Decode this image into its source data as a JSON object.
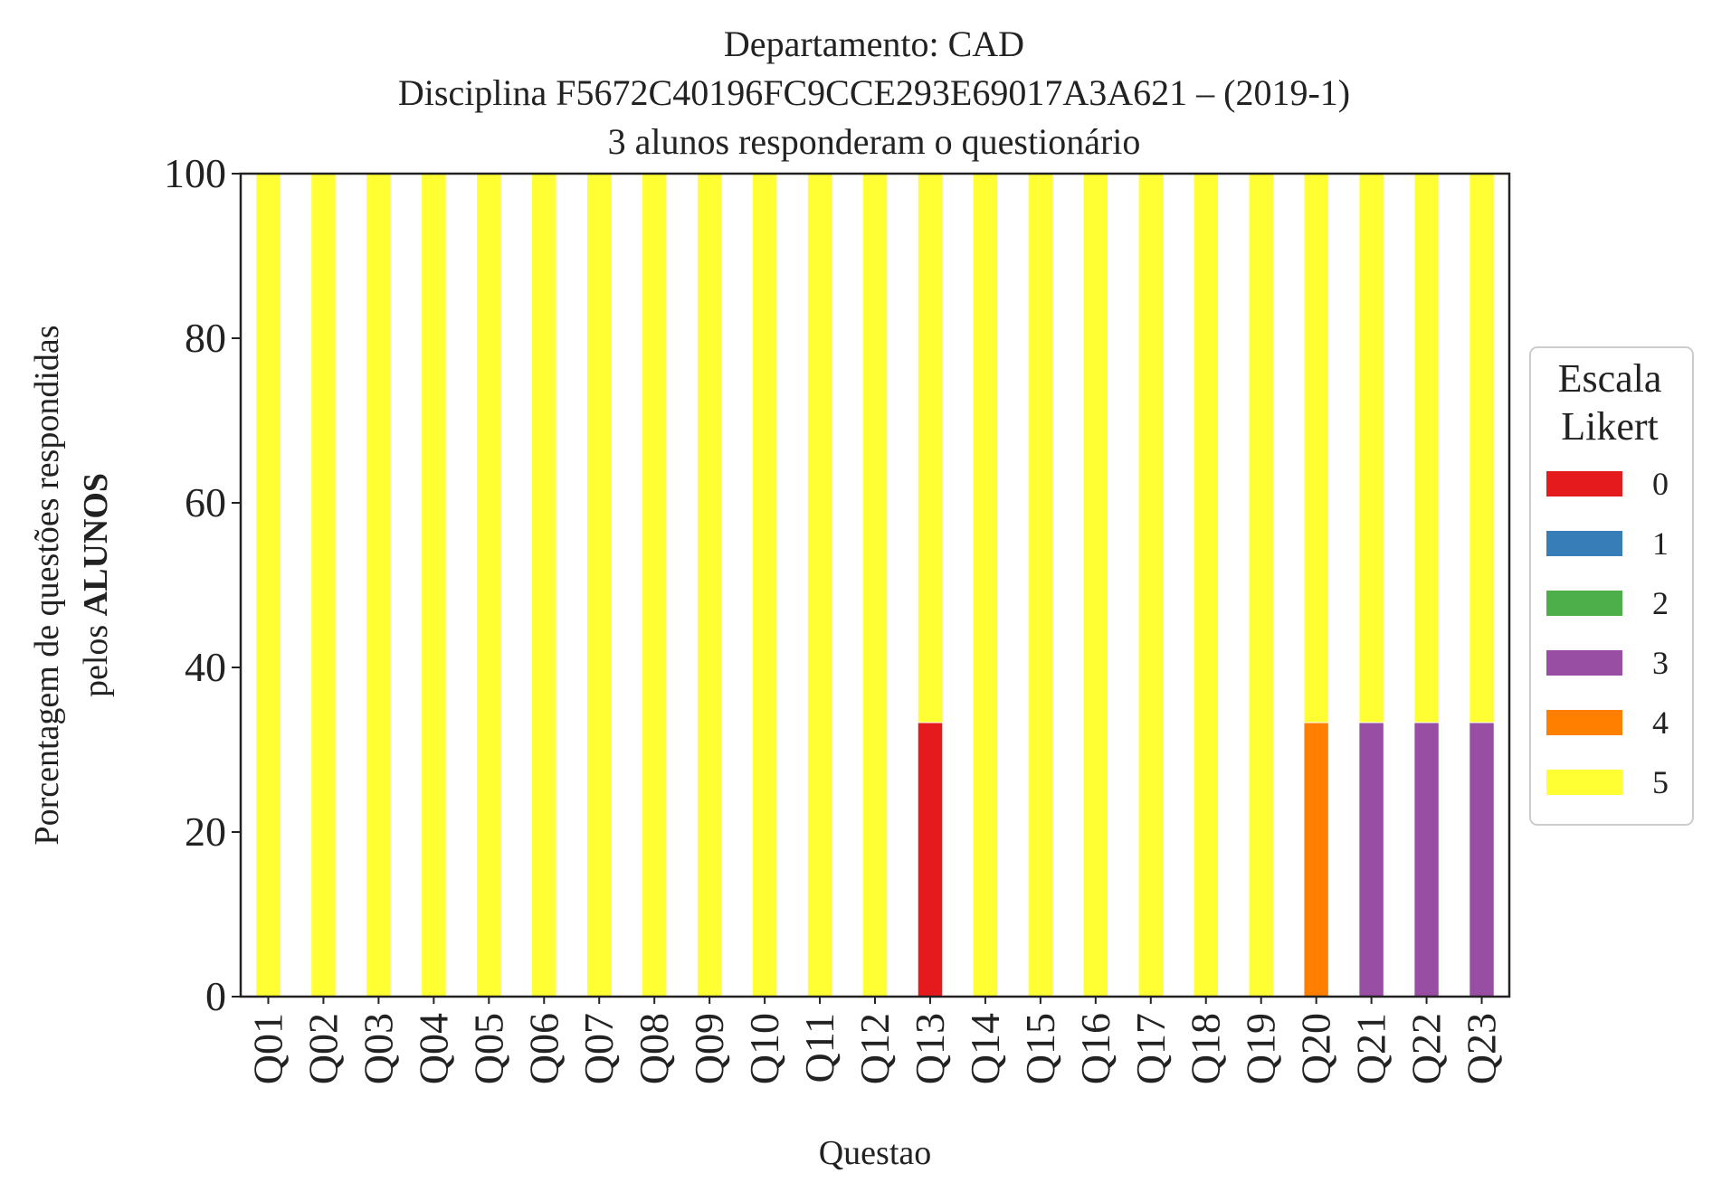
{
  "chart_data": {
    "type": "bar",
    "stacked": true,
    "title_lines": [
      "Departamento: CAD",
      "Disciplina F5672C40196FC9CCE293E69017A3A621 – (2019-1)",
      "3 alunos responderam o questionário"
    ],
    "xlabel": "Questao",
    "ylabel_line1": "Porcentagem de questões respondidas",
    "ylabel_line2_prefix": "pelos ",
    "ylabel_line2_bold": "ALUNOS",
    "ylim": [
      0,
      100
    ],
    "yticks": [
      0,
      20,
      40,
      60,
      80,
      100
    ],
    "grid": false,
    "legend": {
      "title_lines": [
        "Escala",
        "Likert"
      ],
      "placement": "right"
    },
    "categories": [
      "Q01",
      "Q02",
      "Q03",
      "Q04",
      "Q05",
      "Q06",
      "Q07",
      "Q08",
      "Q09",
      "Q10",
      "Q11",
      "Q12",
      "Q13",
      "Q14",
      "Q15",
      "Q16",
      "Q17",
      "Q18",
      "Q19",
      "Q20",
      "Q21",
      "Q22",
      "Q23"
    ],
    "series": [
      {
        "name": "0",
        "color": "#e41a1c",
        "values": [
          0,
          0,
          0,
          0,
          0,
          0,
          0,
          0,
          0,
          0,
          0,
          0,
          33.3,
          0,
          0,
          0,
          0,
          0,
          0,
          0,
          0,
          0,
          0
        ]
      },
      {
        "name": "1",
        "color": "#377eb8",
        "values": [
          0,
          0,
          0,
          0,
          0,
          0,
          0,
          0,
          0,
          0,
          0,
          0,
          0,
          0,
          0,
          0,
          0,
          0,
          0,
          0,
          0,
          0,
          0
        ]
      },
      {
        "name": "2",
        "color": "#4daf4a",
        "values": [
          0,
          0,
          0,
          0,
          0,
          0,
          0,
          0,
          0,
          0,
          0,
          0,
          0,
          0,
          0,
          0,
          0,
          0,
          0,
          0,
          0,
          0,
          0
        ]
      },
      {
        "name": "3",
        "color": "#984ea3",
        "values": [
          0,
          0,
          0,
          0,
          0,
          0,
          0,
          0,
          0,
          0,
          0,
          0,
          0,
          0,
          0,
          0,
          0,
          0,
          0,
          0,
          33.3,
          33.3,
          33.3
        ]
      },
      {
        "name": "4",
        "color": "#ff7f00",
        "values": [
          0,
          0,
          0,
          0,
          0,
          0,
          0,
          0,
          0,
          0,
          0,
          0,
          0,
          0,
          0,
          0,
          0,
          0,
          0,
          33.3,
          0,
          0,
          0
        ]
      },
      {
        "name": "5",
        "color": "#ffff33",
        "values": [
          100,
          100,
          100,
          100,
          100,
          100,
          100,
          100,
          100,
          100,
          100,
          100,
          66.7,
          100,
          100,
          100,
          100,
          100,
          100,
          66.7,
          66.7,
          66.7,
          66.7
        ]
      }
    ]
  }
}
